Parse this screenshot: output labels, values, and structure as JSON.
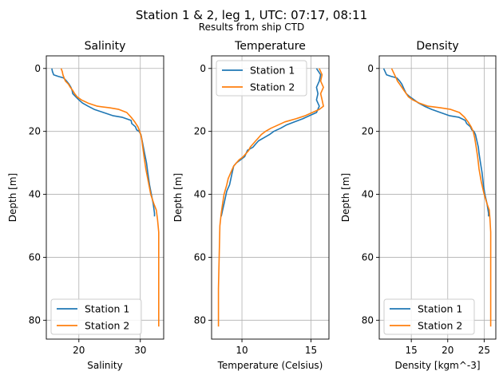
{
  "figure": {
    "title": "Station 1 & 2, leg 1, UTC: 07:17, 08:11",
    "subtitle": "Results from ship CTD"
  },
  "colors": {
    "station1": "#1f77b4",
    "station2": "#ff7f0e",
    "grid": "#b0b0b0"
  },
  "chart_data": [
    {
      "type": "line",
      "title": "Salinity",
      "xlabel": "Salinity",
      "ylabel": "Depth [m]",
      "xlim": [
        14.7,
        33.8
      ],
      "ylim": [
        86,
        -4
      ],
      "xticks": [
        20,
        30
      ],
      "yticks": [
        0,
        20,
        40,
        60,
        80
      ],
      "grid": true,
      "legend": {
        "position": "lower-left",
        "entries": [
          "Station 1",
          "Station 2"
        ]
      },
      "series": [
        {
          "name": "Station 1",
          "points": [
            [
              15.6,
              0
            ],
            [
              15.7,
              1
            ],
            [
              15.9,
              2
            ],
            [
              16.6,
              2.5
            ],
            [
              17.5,
              3
            ],
            [
              18,
              4
            ],
            [
              18.4,
              5
            ],
            [
              18.7,
              6
            ],
            [
              18.9,
              7
            ],
            [
              19,
              8
            ],
            [
              19.5,
              9
            ],
            [
              20,
              10
            ],
            [
              20.6,
              11
            ],
            [
              21.5,
              12
            ],
            [
              22.5,
              13
            ],
            [
              24,
              14
            ],
            [
              25.5,
              15
            ],
            [
              27,
              15.5
            ],
            [
              28.5,
              16.5
            ],
            [
              28.6,
              17.5
            ],
            [
              29.2,
              18.5
            ],
            [
              29.4,
              19.5
            ],
            [
              29.8,
              20
            ],
            [
              30.1,
              21
            ],
            [
              30.3,
              23
            ],
            [
              30.5,
              25
            ],
            [
              30.7,
              27
            ],
            [
              31,
              30
            ],
            [
              31.2,
              33
            ],
            [
              31.5,
              37
            ],
            [
              31.8,
              40
            ],
            [
              32.1,
              43
            ],
            [
              32.3,
              46
            ],
            [
              32.3,
              47
            ]
          ]
        },
        {
          "name": "Station 2",
          "points": [
            [
              17.1,
              0
            ],
            [
              17.3,
              1
            ],
            [
              17.4,
              2
            ],
            [
              17.6,
              3
            ],
            [
              17.8,
              4
            ],
            [
              18.3,
              5
            ],
            [
              18.6,
              6
            ],
            [
              19,
              7
            ],
            [
              19.3,
              8
            ],
            [
              19.7,
              9
            ],
            [
              20.4,
              10
            ],
            [
              21.5,
              11
            ],
            [
              23,
              12
            ],
            [
              25,
              12.5
            ],
            [
              26.5,
              13
            ],
            [
              27.8,
              14
            ],
            [
              28.5,
              15.5
            ],
            [
              29.1,
              17
            ],
            [
              29.6,
              18.5
            ],
            [
              29.9,
              20
            ],
            [
              30.2,
              22
            ],
            [
              30.4,
              25
            ],
            [
              30.6,
              28
            ],
            [
              30.9,
              32
            ],
            [
              31.3,
              36
            ],
            [
              31.7,
              40
            ],
            [
              32.2,
              43
            ],
            [
              32.6,
              45
            ],
            [
              32.8,
              48
            ],
            [
              33,
              52
            ],
            [
              33,
              60
            ],
            [
              33,
              70
            ],
            [
              33,
              80
            ],
            [
              33,
              82
            ]
          ]
        }
      ]
    },
    {
      "type": "line",
      "title": "Temperature",
      "xlabel": "Temperature (Celsius)",
      "ylabel": "Depth [m]",
      "xlim": [
        7.8,
        16.3
      ],
      "ylim": [
        86,
        -4
      ],
      "xticks": [
        10,
        15
      ],
      "yticks": [
        0,
        20,
        40,
        60,
        80
      ],
      "grid": true,
      "legend": {
        "position": "upper-left",
        "entries": [
          "Station 1",
          "Station 2"
        ]
      },
      "series": [
        {
          "name": "Station 1",
          "points": [
            [
              15.4,
              0
            ],
            [
              15.7,
              2
            ],
            [
              15.6,
              4
            ],
            [
              15.4,
              6
            ],
            [
              15.5,
              8
            ],
            [
              15.4,
              10
            ],
            [
              15.6,
              12
            ],
            [
              15.4,
              14
            ],
            [
              14.9,
              15
            ],
            [
              14.4,
              16
            ],
            [
              13.8,
              17
            ],
            [
              13.2,
              18
            ],
            [
              12.8,
              19
            ],
            [
              12.3,
              20
            ],
            [
              12,
              21
            ],
            [
              11.6,
              22
            ],
            [
              11.2,
              23
            ],
            [
              11,
              24
            ],
            [
              10.8,
              25
            ],
            [
              10.4,
              26
            ],
            [
              10.3,
              27
            ],
            [
              10.2,
              28
            ],
            [
              9.9,
              29
            ],
            [
              9.6,
              30
            ],
            [
              9.4,
              31
            ],
            [
              9.3,
              33
            ],
            [
              9.2,
              35
            ],
            [
              9.1,
              37
            ],
            [
              8.9,
              39
            ],
            [
              8.8,
              41
            ],
            [
              8.7,
              43
            ],
            [
              8.6,
              45
            ],
            [
              8.5,
              47
            ]
          ]
        },
        {
          "name": "Station 2",
          "points": [
            [
              15.6,
              0
            ],
            [
              15.8,
              2
            ],
            [
              15.7,
              4
            ],
            [
              15.9,
              6
            ],
            [
              15.7,
              8
            ],
            [
              15.8,
              10
            ],
            [
              15.9,
              12
            ],
            [
              15.6,
              13
            ],
            [
              15.1,
              14
            ],
            [
              14.6,
              15
            ],
            [
              13.9,
              16
            ],
            [
              13.1,
              17
            ],
            [
              12.6,
              18
            ],
            [
              12.1,
              19
            ],
            [
              11.7,
              20
            ],
            [
              11.4,
              21
            ],
            [
              11.2,
              22
            ],
            [
              11,
              23
            ],
            [
              10.8,
              24
            ],
            [
              10.6,
              25
            ],
            [
              10.5,
              26
            ],
            [
              10.3,
              27
            ],
            [
              10.1,
              28
            ],
            [
              9.8,
              29
            ],
            [
              9.6,
              30
            ],
            [
              9.4,
              31
            ],
            [
              9.2,
              33
            ],
            [
              9,
              35
            ],
            [
              8.9,
              37
            ],
            [
              8.7,
              40
            ],
            [
              8.6,
              43
            ],
            [
              8.5,
              46
            ],
            [
              8.4,
              50
            ],
            [
              8.35,
              60
            ],
            [
              8.3,
              70
            ],
            [
              8.3,
              80
            ],
            [
              8.3,
              82
            ]
          ]
        }
      ]
    },
    {
      "type": "line",
      "title": "Density",
      "xlabel": "Density [kgm^-3]",
      "ylabel": "Depth [m]",
      "xlim": [
        10.6,
        26.6
      ],
      "ylim": [
        86,
        -4
      ],
      "xticks": [
        15,
        20,
        25
      ],
      "yticks": [
        0,
        20,
        40,
        60,
        80
      ],
      "grid": true,
      "legend": {
        "position": "lower-left",
        "entries": [
          "Station 1",
          "Station 2"
        ]
      },
      "series": [
        {
          "name": "Station 1",
          "points": [
            [
              11.2,
              0
            ],
            [
              11.4,
              1
            ],
            [
              11.6,
              2
            ],
            [
              12.2,
              2.5
            ],
            [
              13,
              3
            ],
            [
              13.4,
              4
            ],
            [
              13.7,
              5
            ],
            [
              13.9,
              6
            ],
            [
              14.1,
              7
            ],
            [
              14.3,
              8
            ],
            [
              14.8,
              9
            ],
            [
              15.4,
              10
            ],
            [
              16,
              11
            ],
            [
              16.8,
              12
            ],
            [
              17.8,
              13
            ],
            [
              19,
              14
            ],
            [
              20.2,
              15
            ],
            [
              21.5,
              15.5
            ],
            [
              22.4,
              16.5
            ],
            [
              22.6,
              17.5
            ],
            [
              23.1,
              18.5
            ],
            [
              23.3,
              19.5
            ],
            [
              23.6,
              20
            ],
            [
              23.8,
              21
            ],
            [
              24,
              23
            ],
            [
              24.2,
              25
            ],
            [
              24.3,
              27
            ],
            [
              24.5,
              30
            ],
            [
              24.7,
              33
            ],
            [
              24.9,
              37
            ],
            [
              25.1,
              40
            ],
            [
              25.4,
              43
            ],
            [
              25.6,
              46
            ],
            [
              25.6,
              47
            ]
          ]
        },
        {
          "name": "Station 2",
          "points": [
            [
              12.3,
              0
            ],
            [
              12.5,
              1
            ],
            [
              12.7,
              2
            ],
            [
              12.9,
              3
            ],
            [
              13.1,
              4
            ],
            [
              13.4,
              5
            ],
            [
              13.7,
              6
            ],
            [
              14,
              7
            ],
            [
              14.3,
              8
            ],
            [
              14.6,
              9
            ],
            [
              15.2,
              10
            ],
            [
              16.1,
              11
            ],
            [
              17.3,
              12
            ],
            [
              19,
              12.5
            ],
            [
              20.4,
              13
            ],
            [
              21.6,
              14
            ],
            [
              22.3,
              15.5
            ],
            [
              22.8,
              17
            ],
            [
              23.2,
              18.5
            ],
            [
              23.5,
              20
            ],
            [
              23.7,
              22
            ],
            [
              23.9,
              25
            ],
            [
              24.1,
              28
            ],
            [
              24.3,
              32
            ],
            [
              24.6,
              36
            ],
            [
              25,
              40
            ],
            [
              25.4,
              43
            ],
            [
              25.7,
              45
            ],
            [
              25.8,
              48
            ],
            [
              25.9,
              52
            ],
            [
              25.9,
              60
            ],
            [
              25.9,
              70
            ],
            [
              25.9,
              80
            ],
            [
              25.9,
              82
            ]
          ]
        }
      ]
    }
  ]
}
